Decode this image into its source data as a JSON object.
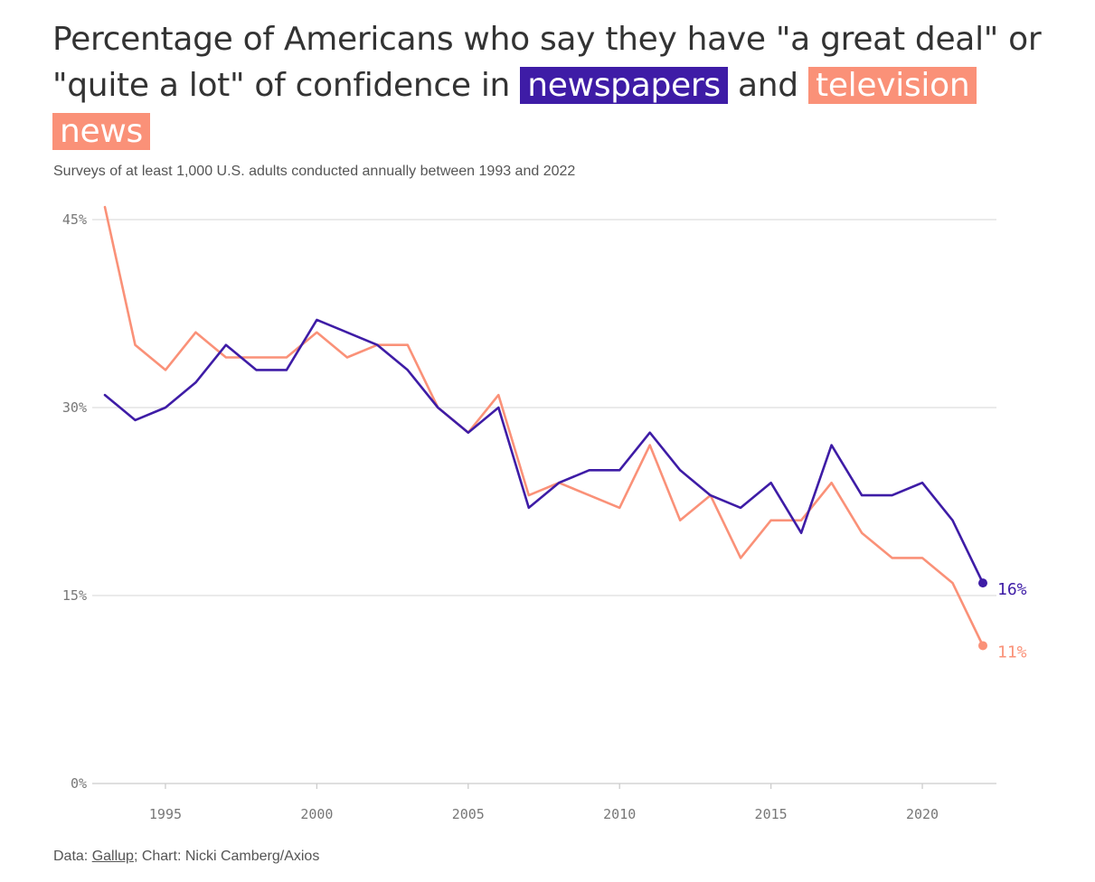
{
  "title": {
    "prefix": "Percentage of Americans who say they have \"a great deal\" or \"quite a lot\" of confidence in",
    "series1": "newspapers",
    "middle": "and",
    "series2": "television news"
  },
  "subtitle": "Surveys of at least 1,000 U.S. adults conducted annually between 1993 and 2022",
  "footer": {
    "data_prefix": "Data: ",
    "source": "Gallup",
    "rest": "; Chart: Nicki Camberg/Axios"
  },
  "colors": {
    "newspapers": "#3e1ca6",
    "television": "#fa9178",
    "grid": "#dddddd",
    "axis": "#cccccc"
  },
  "chart_data": {
    "type": "line",
    "title": "Percentage of Americans who say they have \"a great deal\" or \"quite a lot\" of confidence in newspapers and television news",
    "subtitle": "Surveys of at least 1,000 U.S. adults conducted annually between 1993 and 2022",
    "xlabel": "",
    "ylabel": "",
    "xlim": [
      1993,
      2022
    ],
    "ylim": [
      0,
      45
    ],
    "yticks": [
      0,
      15,
      30,
      45
    ],
    "ytick_labels": [
      "0%",
      "15%",
      "30%",
      "45%"
    ],
    "xticks": [
      1995,
      2000,
      2005,
      2010,
      2015,
      2020
    ],
    "xtick_labels": [
      "1995",
      "2000",
      "2005",
      "2010",
      "2015",
      "2020"
    ],
    "grid": true,
    "x": [
      1993,
      1994,
      1995,
      1996,
      1997,
      1998,
      1999,
      2000,
      2001,
      2002,
      2003,
      2004,
      2005,
      2006,
      2007,
      2008,
      2009,
      2010,
      2011,
      2012,
      2013,
      2014,
      2015,
      2016,
      2017,
      2018,
      2019,
      2020,
      2021,
      2022
    ],
    "series": [
      {
        "name": "newspapers",
        "values": [
          31,
          29,
          30,
          32,
          35,
          33,
          33,
          37,
          36,
          35,
          33,
          30,
          28,
          30,
          22,
          24,
          25,
          25,
          28,
          25,
          23,
          22,
          24,
          20,
          27,
          23,
          23,
          24,
          21,
          16
        ],
        "end_label": "16%"
      },
      {
        "name": "television news",
        "values": [
          46,
          35,
          33,
          36,
          34,
          34,
          34,
          36,
          34,
          35,
          35,
          30,
          28,
          31,
          23,
          24,
          23,
          22,
          27,
          21,
          23,
          18,
          21,
          21,
          24,
          20,
          18,
          18,
          16,
          11
        ],
        "end_label": "11%"
      }
    ]
  }
}
